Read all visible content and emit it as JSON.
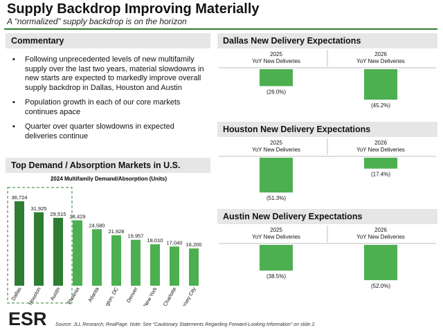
{
  "header": {
    "title": "Supply Backdrop Improving Materially",
    "subtitle": "A “normalized” supply backdrop is on the horizon"
  },
  "commentary": {
    "heading": "Commentary",
    "bullets": [
      "Following unprecedented levels of new multifamily supply over the last two years, material slowdowns in new starts are expected to markedly improve overall supply backdrop in Dallas, Houston and Austin",
      "Population growth in each of our core markets continues apace",
      "Quarter over quarter slowdowns in expected deliveries continue"
    ]
  },
  "demand": {
    "heading": "Top Demand / Absorption Markets in U.S."
  },
  "footer": {
    "source": "Source: JLL Research, RealPage. Note: See “Cautionary Statements Regarding Forward-Looking Information” on slide 2.",
    "logo_text": "ESR"
  },
  "colors": {
    "accent": "#2f7d32",
    "bar_highlight": "#2e7d32",
    "bar": "#4caf50",
    "section_bg": "#e6e6e6"
  },
  "chart_data": [
    {
      "type": "bar",
      "title": "2024 Multifamily Demand/Absorption (Units)",
      "categories": [
        "Dallas",
        "Houston",
        "Austin",
        "Phoenix",
        "Atlanta",
        "Washington, DC",
        "Denver",
        "New York",
        "Charlotte",
        "Newark/Jersey City"
      ],
      "values": [
        36724,
        31925,
        29515,
        28429,
        24580,
        21928,
        19957,
        18010,
        17040,
        16200
      ],
      "data_labels": [
        "36,724",
        "31,925",
        "29,515",
        "28,429",
        "24,580",
        "21,928",
        "19,957",
        "18,010",
        "17,040",
        "16,200"
      ],
      "highlighted": [
        "Dallas",
        "Houston",
        "Austin"
      ],
      "ylim": [
        0,
        40000
      ],
      "xlabel": "",
      "ylabel": ""
    },
    {
      "type": "bar",
      "title": "Dallas New Delivery Expectations",
      "categories": [
        "2025\nYoY New Deliveries",
        "2026\nYoY New Deliveries"
      ],
      "years": [
        "2025",
        "2026"
      ],
      "sublabel": "YoY New Deliveries",
      "values": [
        -26.0,
        -45.2
      ],
      "data_labels": [
        "(26.0%)",
        "(45.2%)"
      ],
      "ylim": [
        -55,
        0
      ]
    },
    {
      "type": "bar",
      "title": "Houston New Delivery Expectations",
      "categories": [
        "2025\nYoY New Deliveries",
        "2026\nYoY New Deliveries"
      ],
      "years": [
        "2025",
        "2026"
      ],
      "sublabel": "YoY New Deliveries",
      "values": [
        -51.3,
        -17.4
      ],
      "data_labels": [
        "(51.3%)",
        "(17.4%)"
      ],
      "ylim": [
        -55,
        0
      ]
    },
    {
      "type": "bar",
      "title": "Austin New Delivery Expectations",
      "categories": [
        "2025\nYoY New Deliveries",
        "2026\nYoY New Deliveries"
      ],
      "years": [
        "2025",
        "2026"
      ],
      "sublabel": "YoY New Deliveries",
      "values": [
        -38.5,
        -52.0
      ],
      "data_labels": [
        "(38.5%)",
        "(52.0%)"
      ],
      "ylim": [
        -55,
        0
      ]
    }
  ]
}
